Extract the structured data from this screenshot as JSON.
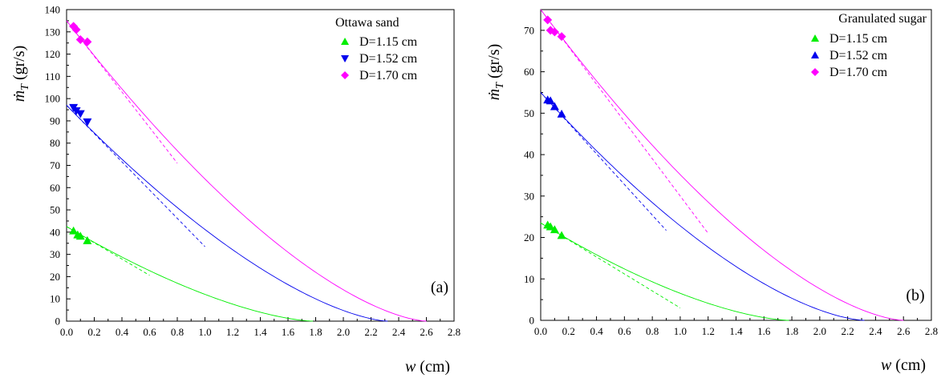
{
  "chart_data": [
    {
      "type": "scatter",
      "panel": "(a)",
      "legend_title": "Ottawa sand",
      "legend_position": "top-right",
      "xlabel_var": "w",
      "xlabel_unit": " (cm)",
      "ylabel_var": "ṁ",
      "ylabel_sub": "T",
      "ylabel_unit": " (gr/s)",
      "xlim": [
        0,
        2.8
      ],
      "ylim": [
        0,
        140
      ],
      "x_ticks": [
        "0.0",
        "0.2",
        "0.4",
        "0.6",
        "0.8",
        "1.0",
        "1.2",
        "1.4",
        "1.6",
        "1.8",
        "2.0",
        "2.2",
        "2.4",
        "2.6",
        "2.8"
      ],
      "y_ticks": [
        "0",
        "10",
        "20",
        "30",
        "40",
        "50",
        "60",
        "70",
        "80",
        "90",
        "100",
        "110",
        "120",
        "130",
        "140"
      ],
      "series": [
        {
          "name": "D=1.15 cm",
          "marker": "triangle-up",
          "color": "#00ee00",
          "points": [
            [
              0.05,
              40.6
            ],
            [
              0.08,
              38.8
            ],
            [
              0.1,
              38.2
            ],
            [
              0.15,
              36.2
            ]
          ],
          "fit_intercept": 42.5,
          "fit_root": 1.78,
          "fit_slope": -36.5,
          "tangent_end": 0.6
        },
        {
          "name": "D=1.52 cm",
          "marker": "triangle-down",
          "color": "#0000ee",
          "points": [
            [
              0.05,
              96.0
            ],
            [
              0.07,
              94.5
            ],
            [
              0.1,
              93.2
            ],
            [
              0.15,
              89.5
            ]
          ],
          "fit_intercept": 97.0,
          "fit_root": 2.32,
          "fit_slope": -63.5,
          "tangent_end": 1.0
        },
        {
          "name": "D=1.70 cm",
          "marker": "diamond",
          "color": "#ff00ff",
          "points": [
            [
              0.05,
              132.5
            ],
            [
              0.07,
              131.0
            ],
            [
              0.1,
              126.5
            ],
            [
              0.15,
              125.5
            ]
          ],
          "fit_intercept": 135.0,
          "fit_root": 2.6,
          "fit_slope": -80.0,
          "tangent_end": 0.8
        }
      ]
    },
    {
      "type": "scatter",
      "panel": "(b)",
      "legend_title": "Granulated sugar",
      "legend_position": "top-right",
      "xlabel_var": "w",
      "xlabel_unit": " (cm)",
      "ylabel_var": "ṁ",
      "ylabel_sub": "T",
      "ylabel_unit": " (gr/s)",
      "xlim": [
        0,
        2.8
      ],
      "ylim": [
        0,
        75
      ],
      "x_ticks": [
        "0.0",
        "0.2",
        "0.4",
        "0.6",
        "0.8",
        "1.0",
        "1.2",
        "1.4",
        "1.6",
        "1.8",
        "2.0",
        "2.2",
        "2.4",
        "2.6",
        "2.8"
      ],
      "y_ticks": [
        "0",
        "10",
        "20",
        "30",
        "40",
        "50",
        "60",
        "70"
      ],
      "series": [
        {
          "name": "D=1.15 cm",
          "marker": "triangle-up",
          "color": "#00ee00",
          "points": [
            [
              0.05,
              23.0
            ],
            [
              0.07,
              22.6
            ],
            [
              0.1,
              21.9
            ],
            [
              0.15,
              20.5
            ]
          ],
          "fit_intercept": 23.5,
          "fit_root": 1.78,
          "fit_slope": -20.5,
          "tangent_end": 1.0
        },
        {
          "name": "D=1.52 cm",
          "marker": "triangle-up",
          "color": "#0000ee",
          "points": [
            [
              0.05,
              53.2
            ],
            [
              0.07,
              53.0
            ],
            [
              0.1,
              51.6
            ],
            [
              0.15,
              49.8
            ]
          ],
          "fit_intercept": 55.0,
          "fit_root": 2.32,
          "fit_slope": -37.0,
          "tangent_end": 0.9
        },
        {
          "name": "D=1.70 cm",
          "marker": "diamond",
          "color": "#ff00ff",
          "points": [
            [
              0.05,
              72.5
            ],
            [
              0.07,
              70.0
            ],
            [
              0.1,
              69.6
            ],
            [
              0.15,
              68.5
            ]
          ],
          "fit_intercept": 75.0,
          "fit_root": 2.6,
          "fit_slope": -45.0,
          "tangent_end": 1.2
        }
      ]
    }
  ]
}
